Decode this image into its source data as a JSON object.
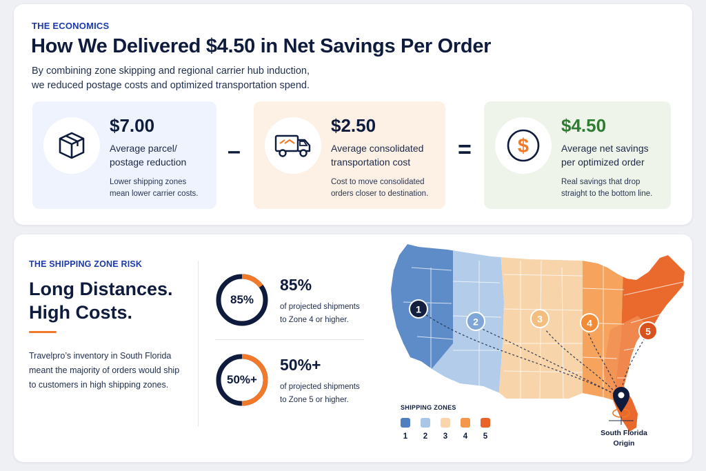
{
  "economics": {
    "eyebrow": "THE ECONOMICS",
    "title": "How We Delivered $4.50 in Net Savings Per Order",
    "intro_line1": "By combining zone skipping and regional carrier hub induction,",
    "intro_line2": "we reduced postage costs and optimized transportation spend.",
    "cards": [
      {
        "value": "$7.00",
        "label_line1": "Average parcel/",
        "label_line2": "postage reduction",
        "note_line1": "Lower shipping zones",
        "note_line2": "mean lower carrier costs.",
        "icon": "package-box-icon",
        "background": "#eef3fd"
      },
      {
        "value": "$2.50",
        "label_line1": "Average consolidated",
        "label_line2": "transportation cost",
        "note_line1": "Cost to move consolidated",
        "note_line2": "orders closer to destination.",
        "icon": "delivery-truck-icon",
        "background": "#fdf1e6"
      },
      {
        "value": "$4.50",
        "label_line1": "Average net savings",
        "label_line2": "per optimized order",
        "note_line1": "Real savings that drop",
        "note_line2": "straight to the bottom line.",
        "icon": "dollar-sign-icon",
        "background": "#eef4ea"
      }
    ],
    "minus_symbol": "–",
    "equals_symbol": "="
  },
  "zone_risk": {
    "eyebrow": "THE SHIPPING ZONE RISK",
    "headline_line1": "Long Distances.",
    "headline_line2": "High Costs.",
    "body_line1": "Travelpro’s inventory in South Florida",
    "body_line2": "meant the majority of orders would ship",
    "body_line3": "to customers in high shipping zones.",
    "stats": [
      {
        "ring_label": "85%",
        "value": "85%",
        "text_line1": "of projected shipments",
        "text_line2": "to Zone 4 or higher.",
        "fill_fraction": 0.85
      },
      {
        "ring_label": "50%+",
        "value": "50%+",
        "text_line1": "of projected shipments",
        "text_line2": "to Zone 5 or higher.",
        "fill_fraction": 0.5
      }
    ]
  },
  "map": {
    "legend_title": "SHIPPING ZONES",
    "zones": [
      {
        "label": "1",
        "color": "#4f7fbf"
      },
      {
        "label": "2",
        "color": "#a9c6e6"
      },
      {
        "label": "3",
        "color": "#f8d5ad"
      },
      {
        "label": "4",
        "color": "#f59749"
      },
      {
        "label": "5",
        "color": "#e8622a"
      }
    ],
    "markers": [
      "1",
      "2",
      "3",
      "4",
      "5"
    ],
    "origin_line1": "South Florida",
    "origin_line2": "Origin"
  },
  "colors": {
    "navy": "#0f1b3d",
    "accent_orange": "#f07a2a",
    "savings_green": "#2e7d32"
  }
}
